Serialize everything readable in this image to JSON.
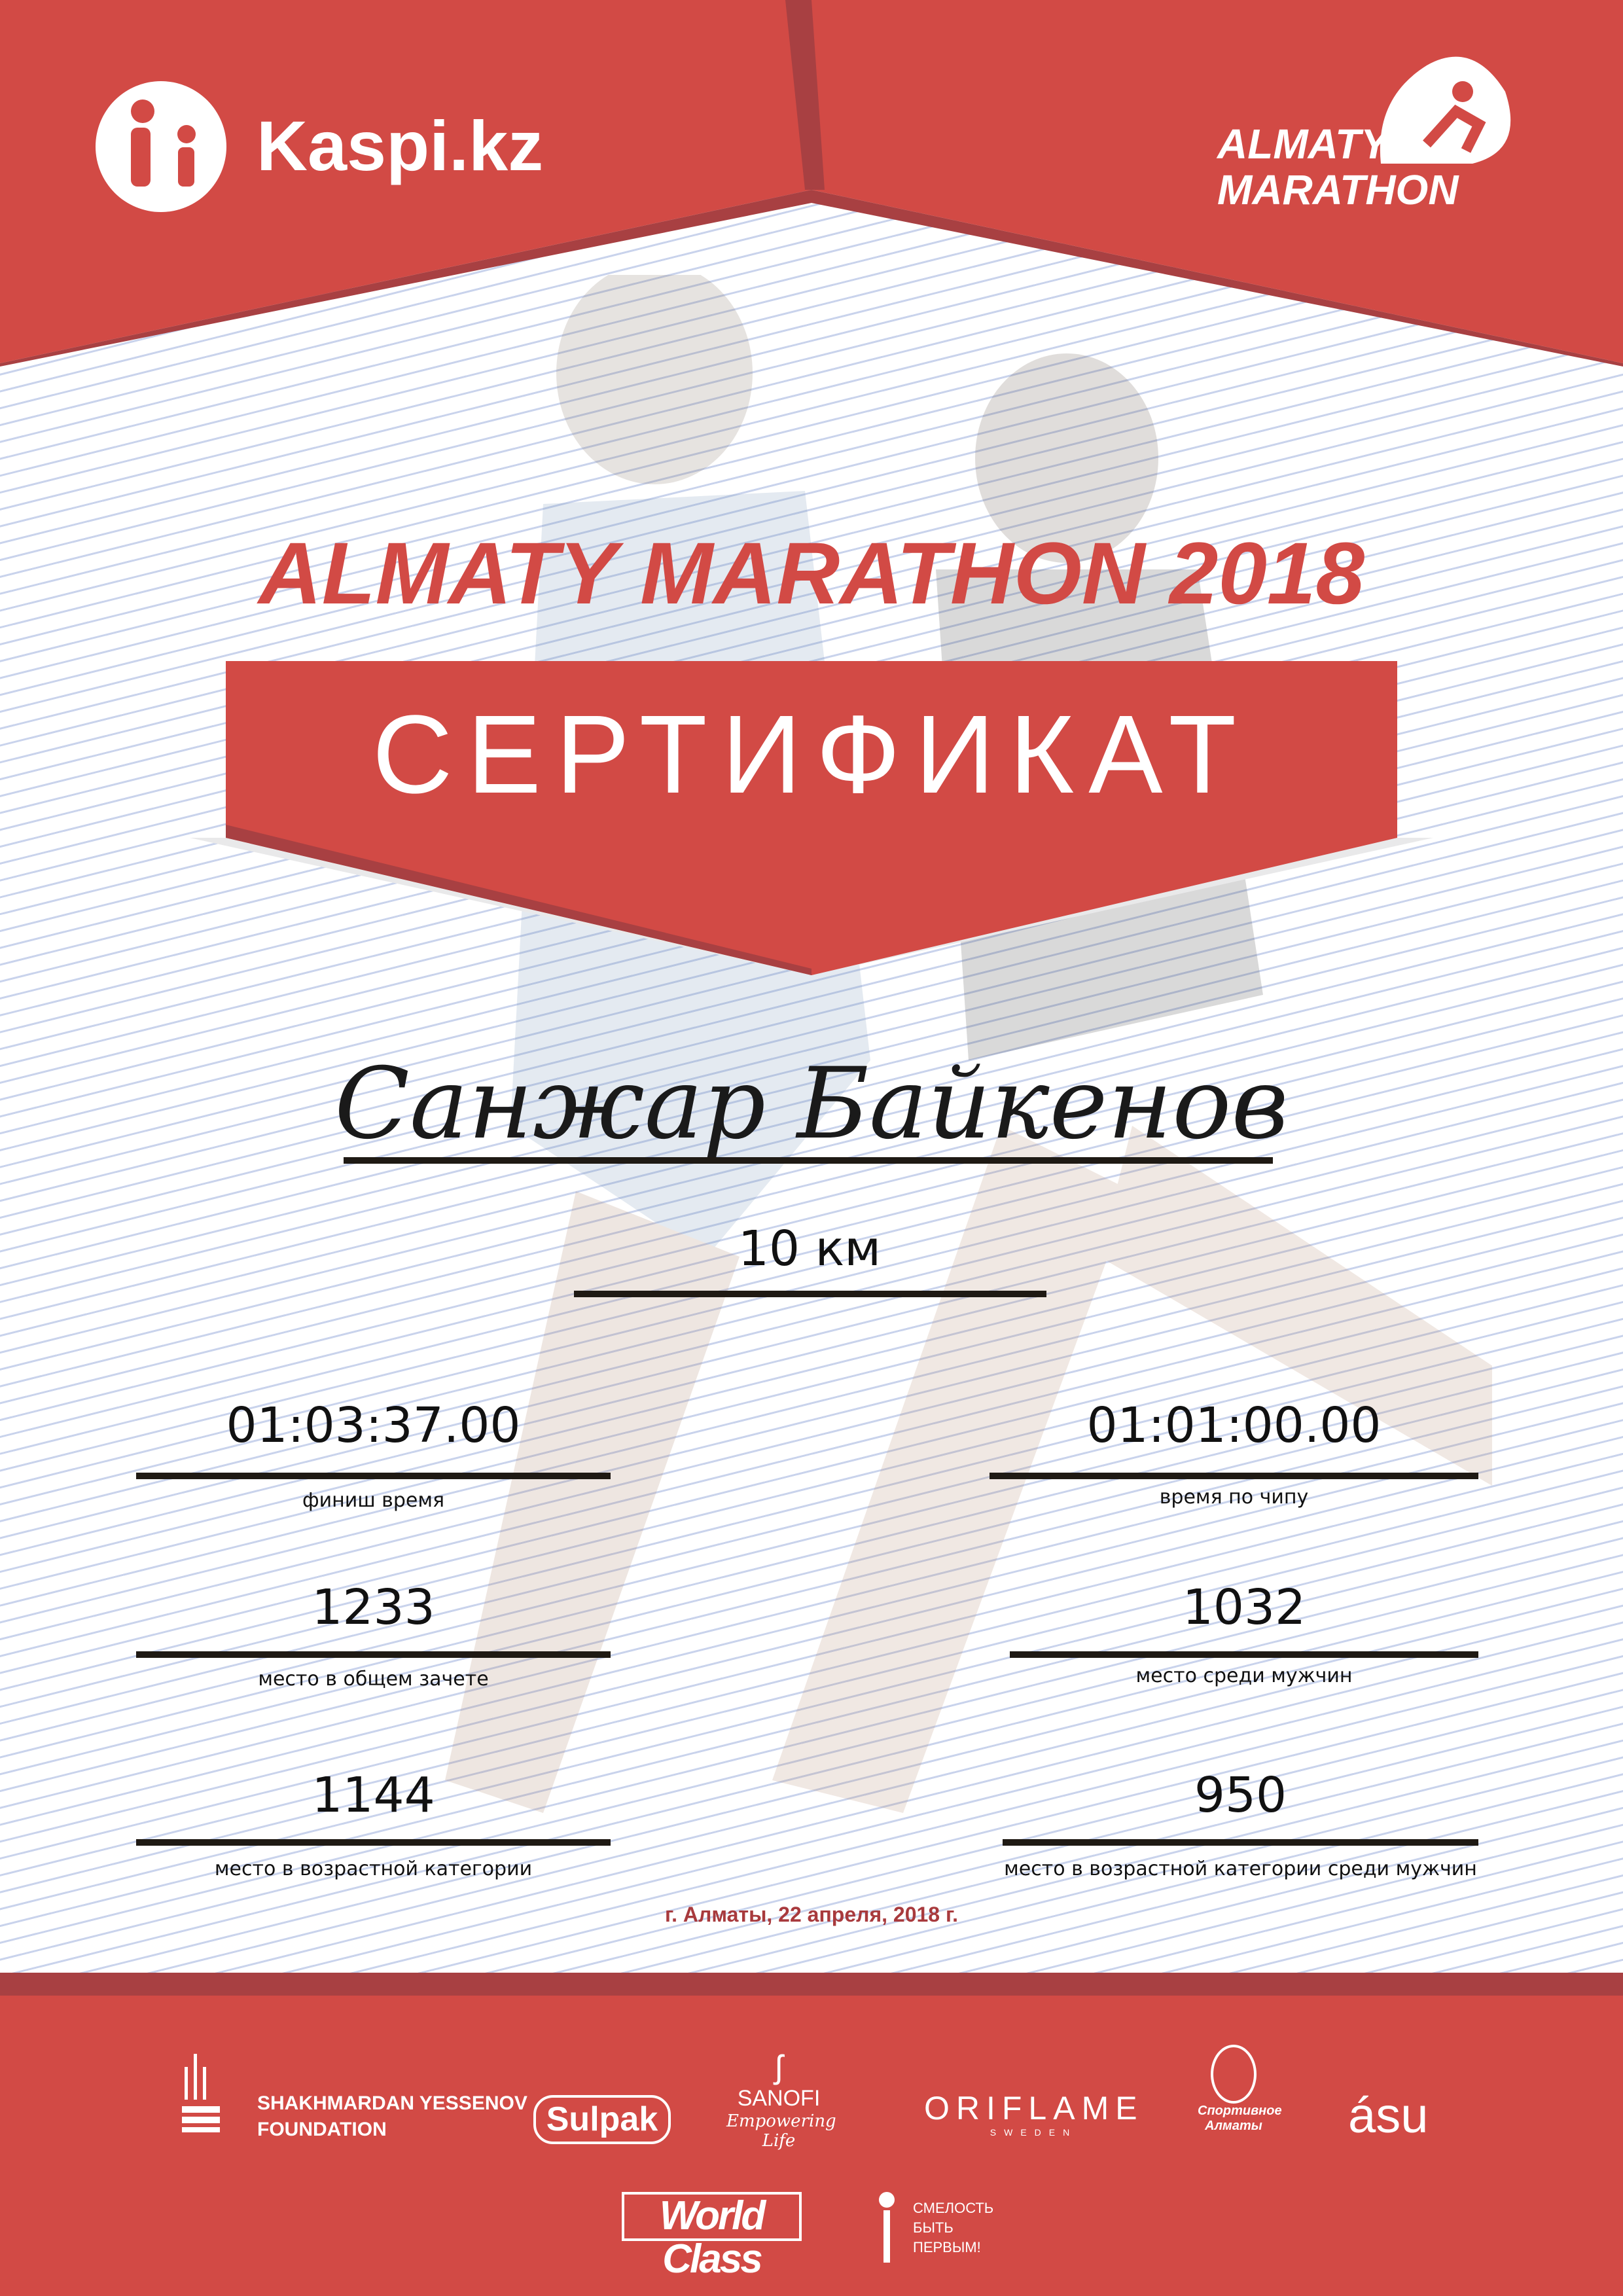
{
  "colors": {
    "brand_red": "#d24a45",
    "dark_red": "#a84042",
    "date_red": "#a83a3d",
    "lines": "#c9d3ec"
  },
  "header": {
    "kaspi": "Kaspi.kz",
    "almaty_logo_line1": "ALMATY",
    "almaty_logo_line2": "MARATHON"
  },
  "title": "ALMATY MARATHON 2018",
  "certificate_label": "СЕРТИФИКАТ",
  "participant": {
    "name": "Санжар Байкенов",
    "distance": "10 км"
  },
  "results": {
    "finish_time": {
      "value": "01:03:37.00",
      "label": "финиш время"
    },
    "chip_time": {
      "value": "01:01:00.00",
      "label": "время по чипу"
    },
    "overall_place": {
      "value": "1233",
      "label": "место в общем зачете"
    },
    "gender_place": {
      "value": "1032",
      "label": "место среди мужчин"
    },
    "age_place": {
      "value": "1144",
      "label": "место в возрастной категории"
    },
    "age_gender_place": {
      "value": "950",
      "label": "место в возрастной категории среди мужчин"
    }
  },
  "date": "г. Алматы, 22 апреля, 2018 г.",
  "sponsors": {
    "yessenov_1": "SHAKHMARDAN YESSENOV",
    "yessenov_2": "FOUNDATION",
    "sulpak": "Sulpak",
    "sanofi": "SANOFI",
    "sanofi_tag": "Empowering Life",
    "oriflame": "ORIFLAME",
    "oriflame_sub": "SWEDEN",
    "sport_almaty_1": "Спортивное",
    "sport_almaty_2": "Алматы",
    "asu": "ásu",
    "worldclass": "World Class",
    "fund_1": "СМЕЛОСТЬ",
    "fund_2": "БЫТЬ",
    "fund_3": "ПЕРВЫМ!"
  }
}
